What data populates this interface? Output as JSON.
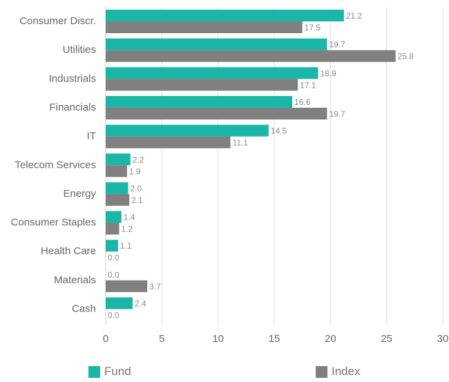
{
  "chart_data": {
    "type": "bar",
    "orientation": "horizontal",
    "categories": [
      "Consumer Discr.",
      "Utilities",
      "Industrials",
      "Financials",
      "IT",
      "Telecom Services",
      "Energy",
      "Consumer Staples",
      "Health Care",
      "Materials",
      "Cash"
    ],
    "series": [
      {
        "name": "Fund",
        "color": "#1ab6a8",
        "values": [
          21.2,
          19.7,
          18.9,
          16.6,
          14.5,
          2.2,
          2.0,
          1.4,
          1.1,
          0.0,
          2.4
        ],
        "labels": [
          "21.2",
          "19.7",
          "18.9",
          "16.6",
          "14.5",
          "2.2",
          "2.0",
          "1.4",
          "1.1",
          "0.0",
          "2.4"
        ]
      },
      {
        "name": "Index",
        "color": "#808080",
        "values": [
          17.5,
          25.8,
          17.1,
          19.7,
          11.1,
          1.9,
          2.1,
          1.2,
          0.0,
          3.7,
          0.0
        ],
        "labels": [
          "17.5",
          "25.8",
          "17.1",
          "19.7",
          "11.1",
          "1.9",
          "2.1",
          "1.2",
          "0.0",
          "3.7",
          "0.0"
        ]
      }
    ],
    "xlim": [
      0,
      30
    ],
    "xticks": [
      0,
      5,
      10,
      15,
      20,
      25,
      30
    ],
    "xtick_labels": [
      "0",
      "5",
      "10",
      "15",
      "20",
      "25",
      "30"
    ],
    "grid": "vertical",
    "legend_position": "bottom",
    "title": "",
    "xlabel": "",
    "ylabel": ""
  }
}
